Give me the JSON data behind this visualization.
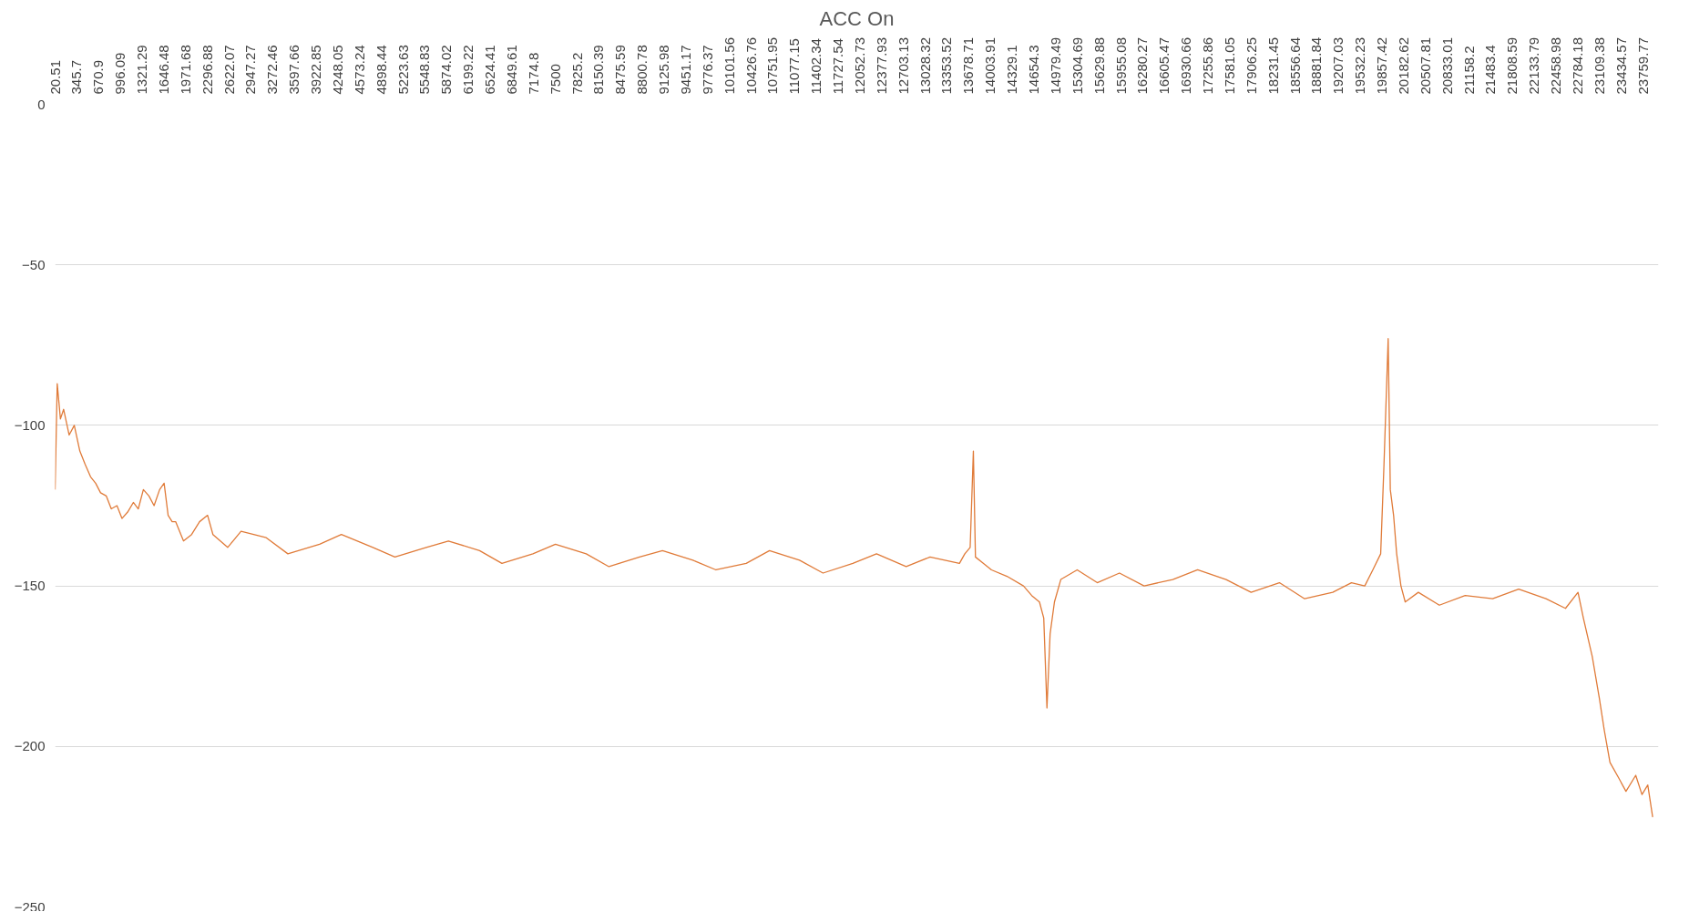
{
  "chart_data": {
    "type": "line",
    "title": "ACC On",
    "x": [
      20.51,
      52,
      100,
      148,
      230,
      307,
      390,
      467,
      550,
      626,
      700,
      786,
      860,
      945,
      1020,
      1105,
      1190,
      1264,
      1340,
      1423,
      1500,
      1583,
      1650,
      1710,
      1770,
      1822,
      1940,
      2061,
      2180,
      2300,
      2380,
      2600,
      2800,
      3177,
      3500,
      3974,
      4300,
      4771,
      5100,
      5569,
      5900,
      6366,
      6700,
      7163,
      7500,
      7960,
      8300,
      8757,
      9100,
      9555,
      9900,
      10352,
      10700,
      11149,
      11500,
      11946,
      12300,
      12743,
      13100,
      13540,
      13620,
      13700,
      13748,
      13779,
      13900,
      14018,
      14250,
      14497,
      14620,
      14736,
      14800,
      14848,
      14895,
      14960,
      15055,
      15300,
      15600,
      15932,
      16300,
      16729,
      17100,
      17526,
      17900,
      18323,
      18700,
      19120,
      19400,
      19599,
      19720,
      19837,
      19885,
      19949,
      19981,
      20030,
      20076,
      20140,
      20204,
      20400,
      20714,
      21100,
      21511,
      21900,
      22308,
      22600,
      22787,
      22867,
      23000,
      23106,
      23180,
      23265,
      23400,
      23504,
      23650,
      23743,
      23830,
      23903
    ],
    "series": [
      {
        "color": "#e07b39",
        "values": [
          -120,
          -87,
          -98,
          -95,
          -103,
          -100,
          -108,
          -112,
          -116,
          -118,
          -121,
          -122,
          -126,
          -125,
          -129,
          -127,
          -124,
          -126,
          -120,
          -122,
          -125,
          -120,
          -118,
          -128,
          -130,
          -130,
          -136,
          -134,
          -130,
          -128,
          -134,
          -138,
          -133,
          -135,
          -140,
          -137,
          -134,
          -138,
          -141,
          -138,
          -136,
          -139,
          -143,
          -140,
          -137,
          -140,
          -144,
          -141,
          -139,
          -142,
          -145,
          -143,
          -139,
          -142,
          -146,
          -143,
          -140,
          -144,
          -141,
          -143,
          -140,
          -138,
          -108,
          -141,
          -143,
          -145,
          -147,
          -150,
          -153,
          -155,
          -160,
          -188,
          -165,
          -155,
          -148,
          -145,
          -149,
          -146,
          -150,
          -148,
          -145,
          -148,
          -152,
          -149,
          -154,
          -152,
          -149,
          -150,
          -145,
          -140,
          -113,
          -73,
          -120,
          -128,
          -140,
          -150,
          -155,
          -152,
          -156,
          -153,
          -154,
          -151,
          -154,
          -157,
          -152,
          -160,
          -172,
          -185,
          -195,
          -205,
          -210,
          -214,
          -209,
          -215,
          -212,
          -222
        ]
      }
    ],
    "xlim": [
      20.51,
      23990
    ],
    "xticks": [
      20.51,
      345.7,
      670.9,
      996.09,
      1321.29,
      1646.48,
      1971.68,
      2296.88,
      2622.07,
      2947.27,
      3272.46,
      3597.66,
      3922.85,
      4248.05,
      4573.24,
      4898.44,
      5223.63,
      5548.83,
      5874.02,
      6199.22,
      6524.41,
      6849.61,
      7174.8,
      7500,
      7825.2,
      8150.39,
      8475.59,
      8800.78,
      9125.98,
      9451.17,
      9776.37,
      10101.56,
      10426.76,
      10751.95,
      11077.15,
      11402.34,
      11727.54,
      12052.73,
      12377.93,
      12703.13,
      13028.32,
      13353.52,
      13678.71,
      14003.91,
      14329.1,
      14654.3,
      14979.49,
      15304.69,
      15629.88,
      15955.08,
      16280.27,
      16605.47,
      16930.66,
      17255.86,
      17581.05,
      17906.25,
      18231.45,
      18556.64,
      18881.84,
      19207.03,
      19532.23,
      19857.42,
      20182.62,
      20507.81,
      20833.01,
      21158.2,
      21483.4,
      21808.59,
      22133.79,
      22458.98,
      22784.18,
      23109.38,
      23434.57,
      23759.77
    ],
    "ylim": [
      -250,
      0
    ],
    "yticks": [
      0,
      -50,
      -100,
      -150,
      -200,
      -250
    ],
    "grid": "y",
    "marker": "none",
    "line_style": "solid"
  }
}
